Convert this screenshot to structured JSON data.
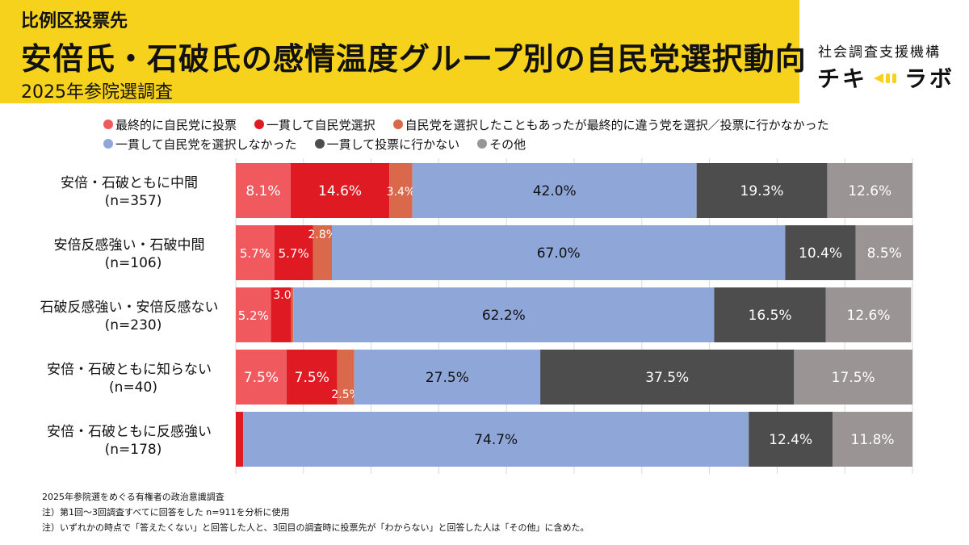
{
  "header": {
    "subtitle_top": "比例区投票先",
    "title": "安倍氏・石破氏の感情温度グループ別の自民党選択動向",
    "subtitle_bottom": "2025年参院選調査"
  },
  "logo": {
    "org": "社会調査支援機構",
    "name_left": "チキ",
    "name_right": "ラボ"
  },
  "colors": {
    "title_bg": "#f7d21c"
  },
  "legend": {
    "row1": [
      {
        "label": "最終的に自民党に投票",
        "color": "#f05a5f"
      },
      {
        "label": "一貫して自民党選択",
        "color": "#e01a22"
      },
      {
        "label": "自民党を選択したこともあったが最終的に違う党を選択／投票に行かなかった",
        "color": "#d9694a"
      }
    ],
    "row2": [
      {
        "label": "一貫して自民党を選択しなかった",
        "color": "#8fa6d8"
      },
      {
        "label": "一貫して投票に行かない",
        "color": "#4d4d4d"
      },
      {
        "label": "その他",
        "color": "#9a9494"
      }
    ]
  },
  "chart_data": {
    "type": "bar",
    "orientation": "horizontal",
    "stacked": true,
    "xlim": [
      0,
      100
    ],
    "categories": [
      [
        "安倍・石破ともに中間",
        "(n=357)"
      ],
      [
        "安倍反感強い・石破中間",
        "(n=106)"
      ],
      [
        "石破反感強い・安倍反感ない",
        "(n=230)"
      ],
      [
        "安倍・石破ともに知らない",
        "(n=40)"
      ],
      [
        "安倍・石破ともに反感強い",
        "(n=178)"
      ]
    ],
    "series": [
      {
        "name": "最終的に自民党に投票",
        "color": "#f05a5f",
        "values": [
          8.1,
          5.7,
          5.2,
          7.5,
          0
        ],
        "labels": [
          "8.1%",
          "5.7%",
          "5.2%",
          "7.5%",
          ""
        ]
      },
      {
        "name": "一貫して自民党選択",
        "color": "#e01a22",
        "values": [
          14.6,
          5.7,
          3.0,
          7.5,
          1.1
        ],
        "labels": [
          "14.6%",
          "5.7%",
          "3.0%",
          "7.5%",
          ""
        ]
      },
      {
        "name": "自民党を選択したこともあったが最終的に違う党を選択／投票に行かなかった",
        "color": "#d9694a",
        "values": [
          3.4,
          2.8,
          0.3,
          2.5,
          0
        ],
        "labels": [
          "3.4%",
          "2.8%",
          "",
          "2.5%",
          ""
        ]
      },
      {
        "name": "一貫して自民党を選択しなかった",
        "color": "#8fa6d8",
        "values": [
          42.0,
          67.0,
          62.2,
          27.5,
          74.7
        ],
        "labels": [
          "42.0%",
          "67.0%",
          "62.2%",
          "27.5%",
          "74.7%"
        ]
      },
      {
        "name": "一貫して投票に行かない",
        "color": "#4d4d4d",
        "values": [
          19.3,
          10.4,
          16.5,
          37.5,
          12.4
        ],
        "labels": [
          "19.3%",
          "10.4%",
          "16.5%",
          "37.5%",
          "12.4%"
        ]
      },
      {
        "name": "その他",
        "color": "#9a9494",
        "values": [
          12.6,
          8.5,
          12.6,
          17.5,
          11.8
        ],
        "labels": [
          "12.6%",
          "8.5%",
          "12.6%",
          "17.5%",
          "11.8%"
        ]
      }
    ],
    "grid": true
  },
  "notes": [
    "2025年参院選をめぐる有権者の政治意識調査",
    "注）第1回～3回調査すべてに回答をした n=911を分析に使用",
    "注）いずれかの時点で「答えたくない」と回答した人と、3回目の調査時に投票先が「わからない」と回答した人は「その他」に含めた。"
  ]
}
